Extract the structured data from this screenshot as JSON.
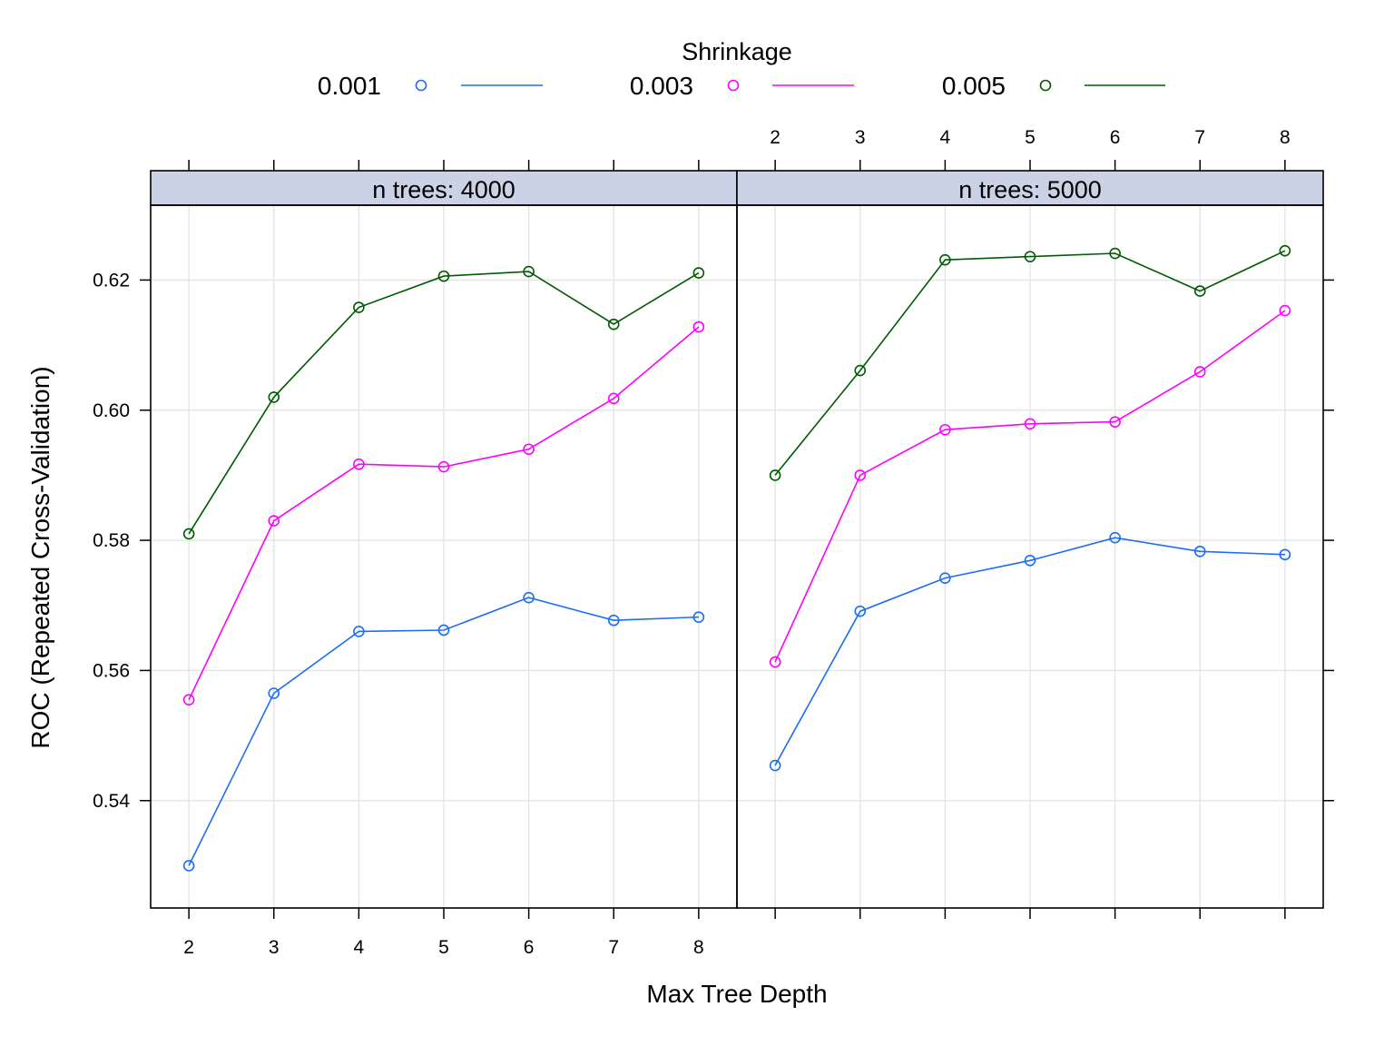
{
  "legend": {
    "title": "Shrinkage",
    "placement": "top",
    "items": [
      {
        "label": "0.001",
        "color": "#1a6ef5"
      },
      {
        "label": "0.003",
        "color": "#ff00ff"
      },
      {
        "label": "0.005",
        "color": "#005a00"
      }
    ]
  },
  "chart_data": {
    "type": "line",
    "xlabel": "Max Tree Depth",
    "ylabel": "ROC (Repeated Cross-Validation)",
    "x": [
      2,
      3,
      4,
      5,
      6,
      7,
      8
    ],
    "y_ticks": [
      "0.54",
      "0.56",
      "0.58",
      "0.60",
      "0.62"
    ],
    "ylim": [
      0.5235,
      0.6315
    ],
    "grid": true,
    "panels": [
      {
        "strip": "n trees: 4000",
        "series": [
          {
            "name": "0.001",
            "color": "#1a6ef5",
            "values": [
              0.53,
              0.5565,
              0.566,
              0.5662,
              0.5712,
              0.5677,
              0.5682
            ]
          },
          {
            "name": "0.003",
            "color": "#ff00ff",
            "values": [
              0.5555,
              0.583,
              0.5917,
              0.5913,
              0.594,
              0.6018,
              0.6128
            ]
          },
          {
            "name": "0.005",
            "color": "#005a00",
            "values": [
              0.581,
              0.602,
              0.6158,
              0.6206,
              0.6213,
              0.6132,
              0.6211
            ]
          }
        ]
      },
      {
        "strip": "n trees: 5000",
        "series": [
          {
            "name": "0.001",
            "color": "#1a6ef5",
            "values": [
              0.5454,
              0.5691,
              0.5742,
              0.5769,
              0.5804,
              0.5783,
              0.5778
            ]
          },
          {
            "name": "0.003",
            "color": "#ff00ff",
            "values": [
              0.5613,
              0.59,
              0.597,
              0.5979,
              0.5982,
              0.6059,
              0.6153
            ]
          },
          {
            "name": "0.005",
            "color": "#005a00",
            "values": [
              0.59,
              0.6061,
              0.6231,
              0.6236,
              0.6241,
              0.6183,
              0.6245
            ]
          }
        ]
      }
    ]
  }
}
